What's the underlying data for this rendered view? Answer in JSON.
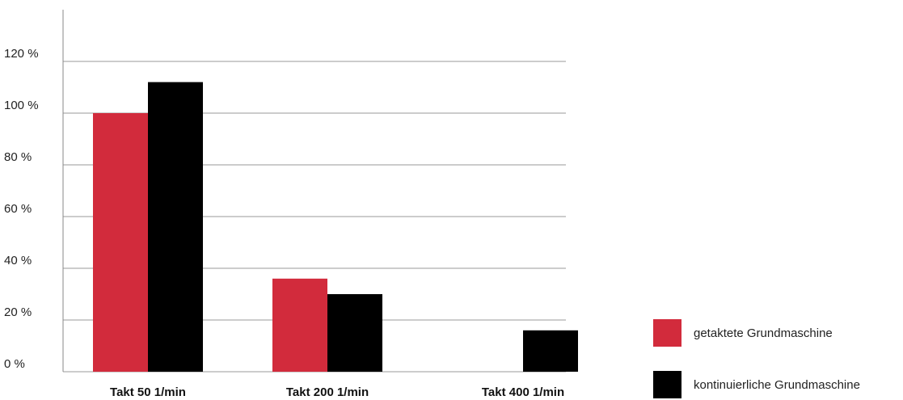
{
  "chart_data": {
    "type": "bar",
    "title": "",
    "xlabel": "",
    "ylabel": "",
    "categories": [
      "Takt 50 1/min",
      "Takt 200 1/min",
      "Takt 400 1/min"
    ],
    "series": [
      {
        "name": "getaktete Grundmaschine",
        "color": "#d22b3c",
        "values": [
          100,
          36,
          null
        ]
      },
      {
        "name": "kontinuierliche Grundmaschine",
        "color": "#000000",
        "values": [
          112,
          30,
          16
        ]
      }
    ],
    "ylim": [
      0,
      120
    ],
    "yticks": [
      0,
      20,
      40,
      60,
      80,
      100,
      120
    ],
    "ytick_labels": [
      "0 %",
      "20 %",
      "40 %",
      "60 %",
      "80 %",
      "100 %",
      "120 %"
    ],
    "grid": true,
    "legend_position": "bottom-right"
  }
}
